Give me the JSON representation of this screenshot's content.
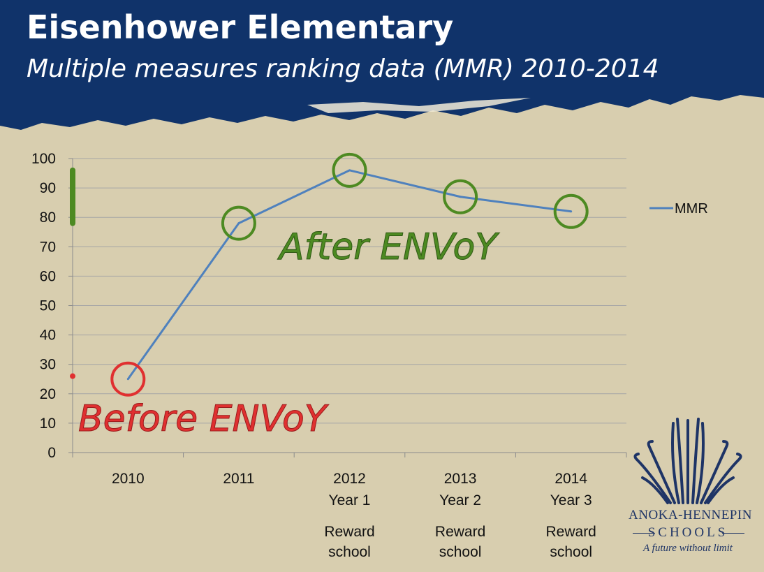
{
  "header": {
    "title": "Eisenhower Elementary",
    "subtitle": "Multiple measures ranking data (MMR) 2010-2014"
  },
  "colors": {
    "header_bg": "#10336a",
    "background": "#d8ceaf",
    "line": "#4f81bd",
    "after_green": "#4d8a22",
    "before_red": "#e03030",
    "logo_navy": "#1e3466"
  },
  "chart_data": {
    "type": "line",
    "title": "",
    "xlabel": "",
    "ylabel": "",
    "ylim": [
      0,
      100
    ],
    "yticks": [
      "0",
      "10",
      "20",
      "30",
      "40",
      "50",
      "60",
      "70",
      "80",
      "90",
      "100"
    ],
    "grid": true,
    "legend_position": "right",
    "categories": [
      [
        "2010"
      ],
      [
        "2011"
      ],
      [
        "2012",
        "Year 1"
      ],
      [
        "2013",
        "Year 2"
      ],
      [
        "2014",
        "Year 3"
      ]
    ],
    "series": [
      {
        "name": "MMR",
        "values": [
          25,
          78,
          96,
          87,
          82
        ]
      }
    ],
    "category_notes": [
      [],
      [],
      [
        "Reward",
        "school"
      ],
      [
        "Reward",
        "school"
      ],
      [
        "Reward",
        "school"
      ]
    ],
    "highlighted_points": [
      0,
      1,
      2,
      3,
      4
    ],
    "annotations": {
      "after": "After ENVoY",
      "before": "Before ENVoY"
    },
    "range_bar_after": [
      78,
      96
    ],
    "dot_before": 26
  },
  "logo": {
    "name": "ANOKA-HENNEPIN",
    "schools": "SCHOOLS",
    "tagline": "A future without limit"
  }
}
